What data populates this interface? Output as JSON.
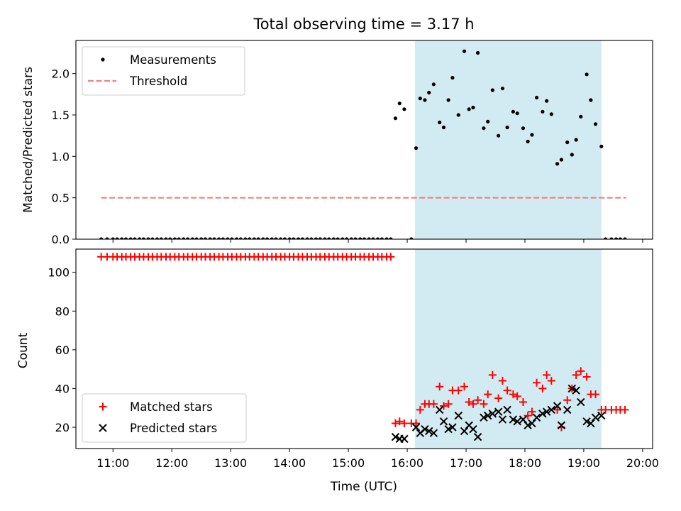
{
  "figure": {
    "title": "Total observing time = 3.17 h",
    "xlabel": "Time (UTC)"
  },
  "colors": {
    "shaded_band": "#add8e6",
    "measurement": "#000000",
    "threshold": "#f08080",
    "matched": "#ff0000",
    "predicted": "#000000"
  },
  "chart_data": [
    {
      "type": "scatter",
      "panel": "top",
      "ylabel": "Matched/Predicted stars",
      "x_axis": {
        "unit": "hours UTC",
        "range": [
          10.37,
          20.17
        ],
        "ticks": [
          11,
          12,
          13,
          14,
          15,
          16,
          17,
          18,
          19,
          20
        ],
        "tick_labels": [
          "11:00",
          "12:00",
          "13:00",
          "14:00",
          "15:00",
          "16:00",
          "17:00",
          "18:00",
          "19:00",
          "20:00"
        ],
        "show_tick_labels": false
      },
      "y_axis": {
        "range": [
          0,
          2.4
        ],
        "ticks": [
          0.0,
          0.5,
          1.0,
          1.5,
          2.0
        ],
        "tick_labels": [
          "0.0",
          "0.5",
          "1.0",
          "1.5",
          "2.0"
        ]
      },
      "shaded_span": {
        "x_start": 16.13,
        "x_end": 19.3
      },
      "legend": {
        "position": "upper left",
        "entries": [
          {
            "label": "Measurements",
            "marker": "dot"
          },
          {
            "label": "Threshold",
            "marker": "dashed-line"
          }
        ]
      },
      "threshold": {
        "y": 0.5,
        "x_start": 10.8,
        "x_end": 19.72
      },
      "series": [
        {
          "name": "Measurements",
          "marker": "dot",
          "x": [
            10.8,
            10.9,
            11.0,
            11.07,
            11.15,
            11.22,
            11.3,
            11.37,
            11.45,
            11.52,
            11.6,
            11.67,
            11.75,
            11.82,
            11.9,
            11.97,
            12.05,
            12.12,
            12.2,
            12.27,
            12.35,
            12.42,
            12.5,
            12.57,
            12.65,
            12.72,
            12.8,
            12.87,
            12.95,
            13.02,
            13.1,
            13.17,
            13.25,
            13.32,
            13.4,
            13.47,
            13.55,
            13.62,
            13.7,
            13.77,
            13.85,
            13.92,
            14.0,
            14.07,
            14.15,
            14.22,
            14.3,
            14.37,
            14.45,
            14.52,
            14.6,
            14.67,
            14.75,
            14.82,
            14.9,
            14.97,
            15.05,
            15.12,
            15.2,
            15.27,
            15.35,
            15.42,
            15.5,
            15.57,
            15.65,
            15.72,
            15.8,
            15.87,
            15.95,
            16.07,
            16.15,
            16.22,
            16.3,
            16.37,
            16.45,
            16.55,
            16.62,
            16.7,
            16.77,
            16.87,
            16.97,
            17.05,
            17.12,
            17.2,
            17.3,
            17.37,
            17.45,
            17.55,
            17.62,
            17.7,
            17.8,
            17.87,
            17.97,
            18.05,
            18.12,
            18.2,
            18.3,
            18.37,
            18.45,
            18.55,
            18.62,
            18.72,
            18.8,
            18.87,
            18.95,
            19.05,
            19.12,
            19.2,
            19.3,
            19.37,
            19.47,
            19.55,
            19.62,
            19.7
          ],
          "y": [
            0,
            0,
            0,
            0,
            0,
            0,
            0,
            0,
            0,
            0,
            0,
            0,
            0,
            0,
            0,
            0,
            0,
            0,
            0,
            0,
            0,
            0,
            0,
            0,
            0,
            0,
            0,
            0,
            0,
            0,
            0,
            0,
            0,
            0,
            0,
            0,
            0,
            0,
            0,
            0,
            0,
            0,
            0,
            0,
            0,
            0,
            0,
            0,
            0,
            0,
            0,
            0,
            0,
            0,
            0,
            0,
            0,
            0,
            0,
            0,
            0,
            0,
            0,
            0,
            0,
            0,
            1.46,
            1.64,
            1.57,
            0,
            1.1,
            1.7,
            1.68,
            1.77,
            1.87,
            1.41,
            1.35,
            1.68,
            1.95,
            1.5,
            2.27,
            1.57,
            1.59,
            2.25,
            1.34,
            1.42,
            1.8,
            1.25,
            1.82,
            1.35,
            1.54,
            1.52,
            1.34,
            1.18,
            1.26,
            1.71,
            1.54,
            1.67,
            1.51,
            0.91,
            0.96,
            1.17,
            1.02,
            1.2,
            1.48,
            1.99,
            1.68,
            1.39,
            1.12,
            0,
            0,
            0,
            0,
            0
          ]
        }
      ]
    },
    {
      "type": "scatter",
      "panel": "bottom",
      "ylabel": "Count",
      "xlabel": "Time (UTC)",
      "x_axis": {
        "unit": "hours UTC",
        "range": [
          10.37,
          20.17
        ],
        "ticks": [
          11,
          12,
          13,
          14,
          15,
          16,
          17,
          18,
          19,
          20
        ],
        "tick_labels": [
          "11:00",
          "12:00",
          "13:00",
          "14:00",
          "15:00",
          "16:00",
          "17:00",
          "18:00",
          "19:00",
          "20:00"
        ],
        "show_tick_labels": true
      },
      "y_axis": {
        "range": [
          9,
          112
        ],
        "ticks": [
          20,
          40,
          60,
          80,
          100
        ],
        "tick_labels": [
          "20",
          "40",
          "60",
          "80",
          "100"
        ]
      },
      "shaded_span": {
        "x_start": 16.13,
        "x_end": 19.3
      },
      "legend": {
        "position": "lower left",
        "entries": [
          {
            "label": "Matched stars",
            "marker": "plus"
          },
          {
            "label": "Predicted stars",
            "marker": "x"
          }
        ]
      },
      "series": [
        {
          "name": "Matched stars",
          "marker": "plus",
          "x": [
            10.8,
            10.9,
            11.0,
            11.07,
            11.15,
            11.22,
            11.3,
            11.37,
            11.45,
            11.52,
            11.6,
            11.67,
            11.75,
            11.82,
            11.9,
            11.97,
            12.05,
            12.12,
            12.2,
            12.27,
            12.35,
            12.42,
            12.5,
            12.57,
            12.65,
            12.72,
            12.8,
            12.87,
            12.95,
            13.02,
            13.1,
            13.17,
            13.25,
            13.32,
            13.4,
            13.47,
            13.55,
            13.62,
            13.7,
            13.77,
            13.85,
            13.92,
            14.0,
            14.07,
            14.15,
            14.22,
            14.3,
            14.37,
            14.45,
            14.52,
            14.6,
            14.67,
            14.75,
            14.82,
            14.9,
            14.97,
            15.05,
            15.12,
            15.2,
            15.27,
            15.35,
            15.42,
            15.5,
            15.57,
            15.65,
            15.72,
            15.8,
            15.87,
            15.95,
            16.07,
            16.15,
            16.22,
            16.3,
            16.37,
            16.45,
            16.55,
            16.62,
            16.7,
            16.77,
            16.87,
            16.97,
            17.05,
            17.12,
            17.2,
            17.3,
            17.37,
            17.45,
            17.55,
            17.62,
            17.7,
            17.8,
            17.87,
            17.97,
            18.05,
            18.12,
            18.2,
            18.3,
            18.37,
            18.45,
            18.55,
            18.62,
            18.72,
            18.8,
            18.87,
            18.95,
            19.05,
            19.12,
            19.2,
            19.3,
            19.37,
            19.47,
            19.55,
            19.62,
            19.7
          ],
          "y": [
            108,
            108,
            108,
            108,
            108,
            108,
            108,
            108,
            108,
            108,
            108,
            108,
            108,
            108,
            108,
            108,
            108,
            108,
            108,
            108,
            108,
            108,
            108,
            108,
            108,
            108,
            108,
            108,
            108,
            108,
            108,
            108,
            108,
            108,
            108,
            108,
            108,
            108,
            108,
            108,
            108,
            108,
            108,
            108,
            108,
            108,
            108,
            108,
            108,
            108,
            108,
            108,
            108,
            108,
            108,
            108,
            108,
            108,
            108,
            108,
            108,
            108,
            108,
            108,
            108,
            108,
            22,
            23,
            22,
            22,
            22,
            29,
            32,
            32,
            32,
            41,
            31,
            32,
            39,
            39,
            41,
            33,
            32,
            34,
            32,
            37,
            47,
            35,
            44,
            39,
            37,
            36,
            33,
            26,
            28,
            43,
            40,
            47,
            44,
            29,
            20,
            34,
            40,
            47,
            49,
            46,
            37,
            37,
            29,
            29,
            29,
            29,
            29,
            29
          ]
        },
        {
          "name": "Predicted stars",
          "marker": "x",
          "x": [
            15.8,
            15.87,
            15.95,
            16.15,
            16.22,
            16.3,
            16.37,
            16.45,
            16.55,
            16.62,
            16.7,
            16.77,
            16.87,
            16.97,
            17.05,
            17.12,
            17.2,
            17.3,
            17.37,
            17.45,
            17.55,
            17.62,
            17.7,
            17.8,
            17.87,
            17.97,
            18.05,
            18.12,
            18.2,
            18.3,
            18.37,
            18.45,
            18.55,
            18.62,
            18.72,
            18.8,
            18.87,
            18.95,
            19.05,
            19.12,
            19.2,
            19.3
          ],
          "y": [
            15,
            14,
            14,
            20,
            17,
            19,
            18,
            17,
            29,
            23,
            19,
            20,
            26,
            18,
            21,
            19,
            15,
            25,
            26,
            27,
            28,
            24,
            29,
            24,
            23,
            24,
            21,
            22,
            25,
            27,
            28,
            29,
            31,
            21,
            29,
            40,
            39,
            33,
            23,
            22,
            25,
            26
          ]
        }
      ]
    }
  ]
}
